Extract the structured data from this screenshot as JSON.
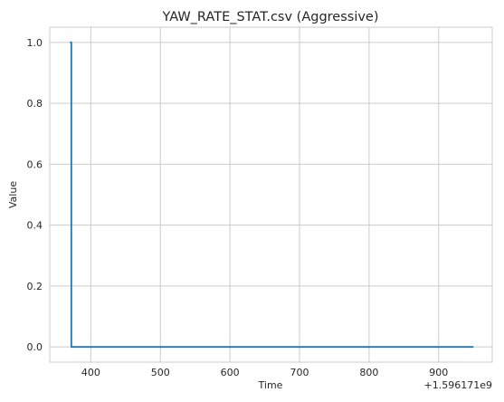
{
  "chart_data": {
    "type": "line",
    "title": "YAW_RATE_STAT.csv (Aggressive)",
    "xlabel": "Time",
    "ylabel": "Value",
    "x_offset_label": "+1.596171e9",
    "xlim": [
      341,
      977
    ],
    "ylim": [
      -0.05,
      1.05
    ],
    "xticks": [
      400,
      500,
      600,
      700,
      800,
      900
    ],
    "yticks": [
      0.0,
      0.2,
      0.4,
      0.6,
      0.8,
      1.0
    ],
    "xtick_labels": [
      "400",
      "500",
      "600",
      "700",
      "800",
      "900"
    ],
    "ytick_labels": [
      "0.0",
      "0.2",
      "0.4",
      "0.6",
      "0.8",
      "1.0"
    ],
    "grid": true,
    "series": [
      {
        "color": "#1f77b4",
        "x": [
          370,
          372,
          372,
          950
        ],
        "y": [
          1.0,
          1.0,
          0.0,
          0.0
        ]
      }
    ]
  }
}
